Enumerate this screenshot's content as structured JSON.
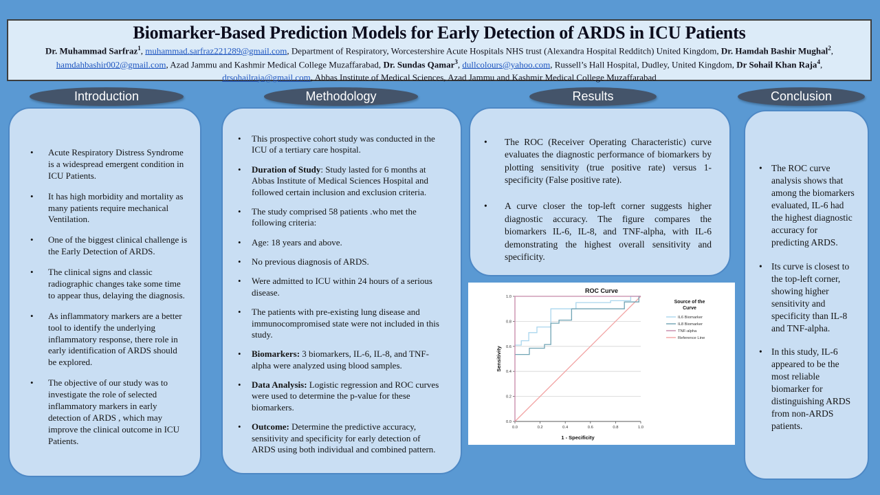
{
  "poster": {
    "title": "Biomarker-Based Prediction Models for Early Detection of ARDS in ICU Patients",
    "author_segments": [
      {
        "t": "Dr. Muhammad Sarfraz",
        "b": true
      },
      {
        "t": "1",
        "b": true,
        "sup": true
      },
      {
        "t": ",  "
      },
      {
        "t": "muhammad.sarfraz221289@gmail.com",
        "link": true
      },
      {
        "t": ",  Department of Respiratory, Worcestershire Acute Hospitals NHS trust (Alexandra Hospital Redditch) United Kingdom,  "
      },
      {
        "t": "Dr. Hamdah Bashir Mughal",
        "b": true
      },
      {
        "t": "2",
        "b": true,
        "sup": true
      },
      {
        "t": ", "
      },
      {
        "t": "hamdahbashir002@gmail.com",
        "link": true
      },
      {
        "t": ",  Azad Jammu and Kashmir Medical College Muzaffarabad,  "
      },
      {
        "t": "Dr. Sundas Qamar",
        "b": true
      },
      {
        "t": "3",
        "b": true,
        "sup": true
      },
      {
        "t": ",  "
      },
      {
        "t": "dullcolours@yahoo.com",
        "link": true
      },
      {
        "t": ",  Russell’s Hall Hospital,  Dudley,  United Kingdom,  "
      },
      {
        "t": "Dr Sohail Khan Raja",
        "b": true
      },
      {
        "t": "4",
        "b": true,
        "sup": true
      },
      {
        "t": ", "
      },
      {
        "t": "drsohailraja@gmail.com",
        "link": true
      },
      {
        "t": ",  Abbas Institute of Medical Sciences,  Azad Jammu and Kashmir Medical College Muzaffarabad"
      }
    ],
    "colors": {
      "background": "#5a99d3",
      "header_fill": "#dcebf8",
      "pill_fill": "#44546a",
      "box_fill": "#c9def3",
      "box_border": "#4d88c5",
      "link_blue": "#2057c0"
    }
  },
  "sections": {
    "introduction": {
      "heading": "Introduction",
      "items": [
        {
          "text": "Acute Respiratory Distress Syndrome is a widespread emergent condition  in ICU Patients."
        },
        {
          "text": " It has high  morbidity   and mortality as  many patients require mechanical Ventilation."
        },
        {
          "text": " One of the biggest  clinical challenge is the Early  Detection of ARDS."
        },
        {
          "text": "The clinical  signs  and classic radiographic  changes take some time to appear thus,  delaying  the diagnosis."
        },
        {
          "text": "As inflammatory  markers are a better tool to identify  the underlying inflammatory  response, there role  in early  identification  of ARDS should be explored."
        },
        {
          "text": "The objective  of our  study was to investigate  the role  of selected inflammatory  markers in  early detection of ARDS , which  may improve  the clinical  outcome  in ICU Patients."
        }
      ]
    },
    "methodology": {
      "heading": "Methodology",
      "items": [
        {
          "text": "This  prospective  cohort  study  was conducted in the ICU of a tertiary  care hospital."
        },
        {
          "lead": "Duration of Study",
          "text": ":  Study  lasted for  6 months at Abbas Institute  of Medical  Sciences Hospital and followed  certain inclusion   and exclusion criteria."
        },
        {
          "text": "The study  comprised 58  patients  .who met the following   criteria:"
        },
        {
          "text": "Age: 18 years and above."
        },
        {
          "text": "No previous  diagnosis  of ARDS."
        },
        {
          "text": "Were admitted  to ICU within  24 hours of a serious  disease."
        },
        {
          "text": " The patients  with  pre-existing  lung  disease and immunocompromised   state were not included in  this  study."
        },
        {
          "lead": "Biomarkers:",
          "text": " 3 biomarkers, IL-6,  IL-8,  and TNF-alpha were analyzed  using  blood  samples."
        },
        {
          "lead": "Data Analysis:",
          "text": " Logistic  regression and ROC curves were used to determine  the p-value  for these biomarkers."
        },
        {
          "lead": "Outcome:",
          "text": " Determine  the predictive  accuracy, sensitivity  and specificity  for  early  detection of ARDS using  both  individual   and combined pattern."
        }
      ]
    },
    "results": {
      "heading": "Results",
      "items": [
        {
          "text": "The ROC (Receiver Operating Characteristic)  curve evaluates the diagnostic performance of biomarkers by plotting sensitivity (true positive rate) versus 1-specificity (False positive rate)."
        },
        {
          "text": "A curve closer the top-left corner suggests higher diagnostic accuracy. The figure compares the biomarkers IL-6, IL-8, and TNF-alpha, with IL-6 demonstrating the highest overall sensitivity and specificity."
        }
      ]
    },
    "conclusion": {
      "heading": "Conclusion",
      "items": [
        {
          "text": "The ROC curve analysis  shows that among the biomarkers evaluated, IL-6 had the highest  diagnostic accuracy for predicting  ARDS."
        },
        {
          "text": "Its curve is  closest to the top-left  corner, showing higher sensitivity  and specificity than IL-8 and TNF-alpha."
        },
        {
          "text": "In this  study, IL-6 appeared to be the most reliable biomarker  for distinguishing  ARDS from non-ARDS patients."
        }
      ]
    }
  },
  "chart_data": {
    "type": "line",
    "subtype": "roc-step-curves",
    "title": "ROC Curve",
    "xlabel": "1 - Specificity",
    "ylabel": "Sensitivity",
    "xlim": [
      0,
      1
    ],
    "ylim": [
      0,
      1
    ],
    "xticks": [
      0.0,
      0.2,
      0.4,
      0.6,
      0.8,
      1.0
    ],
    "yticks": [
      0.0,
      0.2,
      0.4,
      0.6,
      0.8,
      1.0
    ],
    "grid": "horizontal",
    "legend_title_lines": [
      "Source of the",
      "Curve"
    ],
    "legend_position": "right",
    "series": [
      {
        "name": "IL6 Biomarker",
        "color": "#a9d6ee",
        "points": [
          [
            0,
            0.61
          ],
          [
            0.05,
            0.61
          ],
          [
            0.05,
            0.645
          ],
          [
            0.11,
            0.645
          ],
          [
            0.11,
            0.71
          ],
          [
            0.175,
            0.71
          ],
          [
            0.175,
            0.755
          ],
          [
            0.285,
            0.755
          ],
          [
            0.285,
            0.9
          ],
          [
            0.485,
            0.9
          ],
          [
            0.485,
            0.95
          ],
          [
            0.76,
            0.95
          ],
          [
            0.76,
            0.965
          ],
          [
            0.92,
            0.965
          ],
          [
            0.92,
            1
          ],
          [
            1,
            1
          ]
        ]
      },
      {
        "name": "IL8 Biomarker",
        "color": "#6fa3b4",
        "points": [
          [
            0,
            0.535
          ],
          [
            0.115,
            0.535
          ],
          [
            0.115,
            0.585
          ],
          [
            0.235,
            0.585
          ],
          [
            0.235,
            0.615
          ],
          [
            0.285,
            0.615
          ],
          [
            0.285,
            0.785
          ],
          [
            0.35,
            0.785
          ],
          [
            0.35,
            0.81
          ],
          [
            0.45,
            0.81
          ],
          [
            0.45,
            0.9
          ],
          [
            0.87,
            0.9
          ],
          [
            0.87,
            0.955
          ],
          [
            0.985,
            0.955
          ],
          [
            0.985,
            1
          ],
          [
            1,
            1
          ]
        ]
      },
      {
        "name": "TNF-alpha",
        "color": "#c586a8",
        "points": [
          [
            0,
            0
          ],
          [
            0,
            1
          ],
          [
            1,
            1
          ]
        ]
      },
      {
        "name": "Reference Line",
        "color": "#f2a3a3",
        "points": [
          [
            0,
            0
          ],
          [
            1,
            1
          ]
        ]
      }
    ]
  }
}
